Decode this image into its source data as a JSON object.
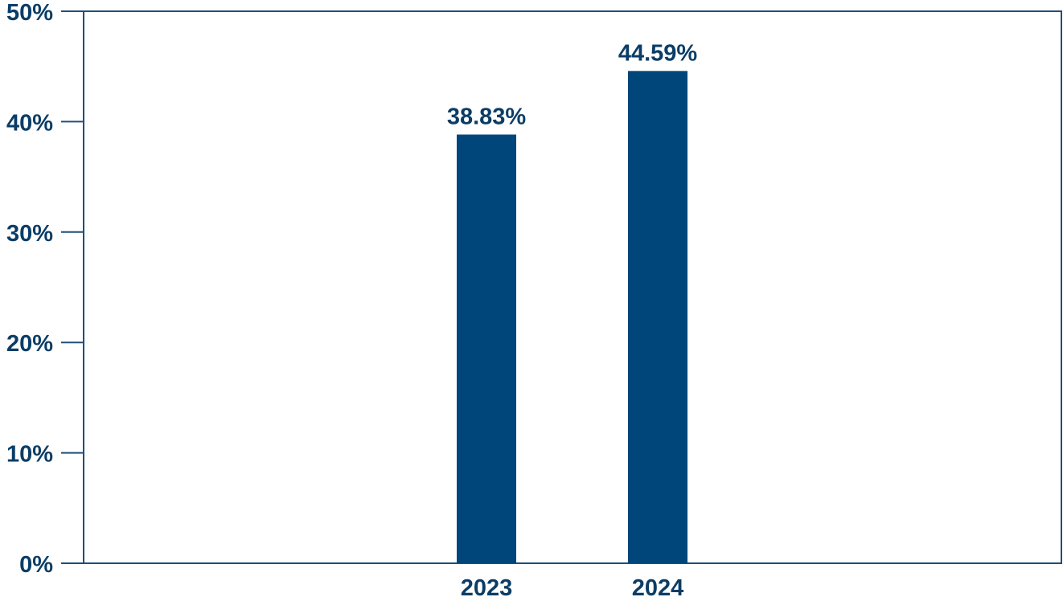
{
  "chart_data": {
    "type": "bar",
    "categories": [
      "2023",
      "2024"
    ],
    "values": [
      38.83,
      44.59
    ],
    "value_labels": [
      "38.83%",
      "44.59%"
    ],
    "ylim": [
      0,
      50
    ],
    "y_ticks": [
      {
        "value": 0,
        "label": "0%"
      },
      {
        "value": 10,
        "label": "10%"
      },
      {
        "value": 20,
        "label": "20%"
      },
      {
        "value": 30,
        "label": "30%"
      },
      {
        "value": 40,
        "label": "40%"
      },
      {
        "value": 50,
        "label": "50%"
      }
    ],
    "grid": false,
    "legend": "none",
    "colors": {
      "bar": "#00467a",
      "axis": "#1f4e79",
      "text": "#0b3d66"
    }
  }
}
